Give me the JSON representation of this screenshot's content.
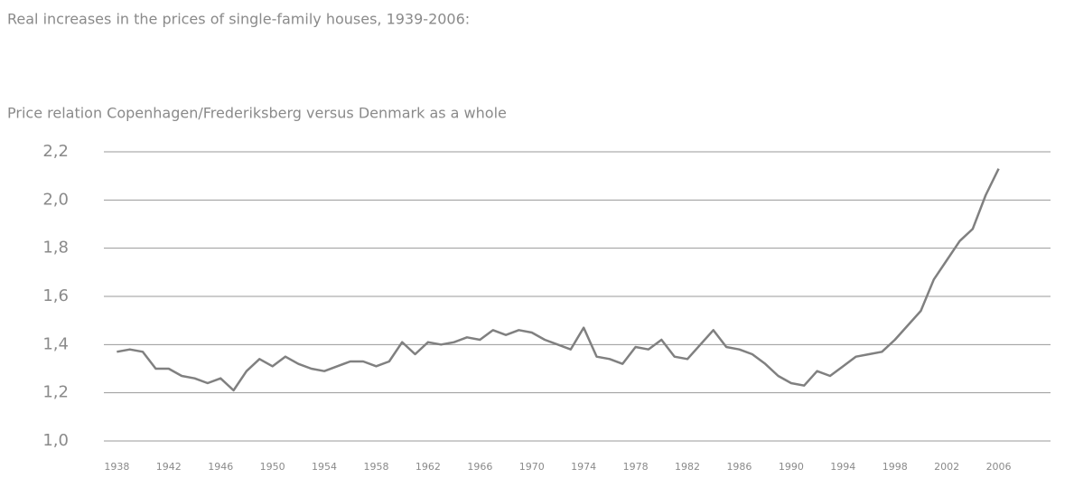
{
  "chart_data": {
    "type": "line",
    "title": "Real increases in the prices of single-family houses, 1939-2006:",
    "subtitle": "Price relation Copenhagen/Frederiksberg versus Denmark as a whole",
    "x": [
      1938,
      1939,
      1940,
      1941,
      1942,
      1943,
      1944,
      1945,
      1946,
      1947,
      1948,
      1949,
      1950,
      1951,
      1952,
      1953,
      1954,
      1955,
      1956,
      1957,
      1958,
      1959,
      1960,
      1961,
      1962,
      1963,
      1964,
      1965,
      1966,
      1967,
      1968,
      1969,
      1970,
      1971,
      1972,
      1973,
      1974,
      1975,
      1976,
      1977,
      1978,
      1979,
      1980,
      1981,
      1982,
      1983,
      1984,
      1985,
      1986,
      1987,
      1988,
      1989,
      1990,
      1991,
      1992,
      1993,
      1994,
      1995,
      1996,
      1997,
      1998,
      1999,
      2000,
      2001,
      2002,
      2003,
      2004,
      2005,
      2006
    ],
    "series": [
      {
        "name": "Price relation",
        "color": "#808080",
        "values": [
          1.37,
          1.38,
          1.37,
          1.3,
          1.3,
          1.27,
          1.26,
          1.24,
          1.26,
          1.21,
          1.29,
          1.34,
          1.31,
          1.35,
          1.32,
          1.3,
          1.29,
          1.31,
          1.33,
          1.33,
          1.31,
          1.33,
          1.41,
          1.36,
          1.41,
          1.4,
          1.41,
          1.43,
          1.42,
          1.46,
          1.44,
          1.46,
          1.45,
          1.42,
          1.4,
          1.38,
          1.47,
          1.35,
          1.34,
          1.32,
          1.39,
          1.38,
          1.42,
          1.35,
          1.34,
          1.4,
          1.46,
          1.39,
          1.38,
          1.36,
          1.32,
          1.27,
          1.24,
          1.23,
          1.29,
          1.27,
          1.31,
          1.35,
          1.36,
          1.37,
          1.42,
          1.48,
          1.54,
          1.67,
          1.75,
          1.83,
          1.88,
          2.02,
          2.13
        ]
      }
    ],
    "xlim": [
      1937,
      2010
    ],
    "xticks": [
      1938,
      1942,
      1946,
      1950,
      1954,
      1958,
      1962,
      1966,
      1970,
      1974,
      1978,
      1982,
      1986,
      1990,
      1994,
      1998,
      2002,
      2006
    ],
    "ylim": [
      1.0,
      2.2
    ],
    "yticks": [
      {
        "value": 1.0,
        "label": "1,0"
      },
      {
        "value": 1.2,
        "label": "1,2"
      },
      {
        "value": 1.4,
        "label": "1,4"
      },
      {
        "value": 1.6,
        "label": "1,6"
      },
      {
        "value": 1.8,
        "label": "1,8"
      },
      {
        "value": 2.0,
        "label": "2,0"
      },
      {
        "value": 2.2,
        "label": "2,2"
      }
    ],
    "grid": true
  }
}
